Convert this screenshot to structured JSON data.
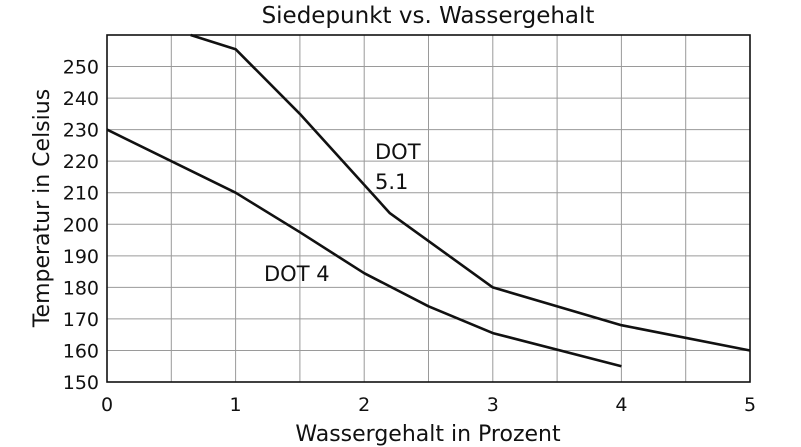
{
  "chart_data": {
    "type": "line",
    "title": "Siedepunkt vs. Wassergehalt",
    "xlabel": "Wassergehalt in Prozent",
    "ylabel": "Temperatur in Celsius",
    "xlim": [
      0,
      5
    ],
    "ylim": [
      150,
      260
    ],
    "x_ticks": [
      "0",
      "1",
      "2",
      "3",
      "4",
      "5"
    ],
    "y_ticks": [
      "150",
      "160",
      "170",
      "180",
      "190",
      "200",
      "210",
      "220",
      "230",
      "240",
      "250"
    ],
    "grid": true,
    "series": [
      {
        "name": "DOT 5.1",
        "label_lines": [
          "DOT",
          "5.1"
        ],
        "x": [
          0.65,
          1.0,
          1.5,
          2.2,
          3.0,
          4.0,
          5.0
        ],
        "y": [
          260,
          255.5,
          235,
          203.5,
          180,
          168,
          160
        ]
      },
      {
        "name": "DOT 4",
        "label_lines": [
          "DOT 4"
        ],
        "x": [
          0,
          1.0,
          1.5,
          2.0,
          2.5,
          3.0,
          4.0
        ],
        "y": [
          230,
          210,
          197.5,
          184.5,
          174,
          165.5,
          155
        ]
      }
    ]
  }
}
